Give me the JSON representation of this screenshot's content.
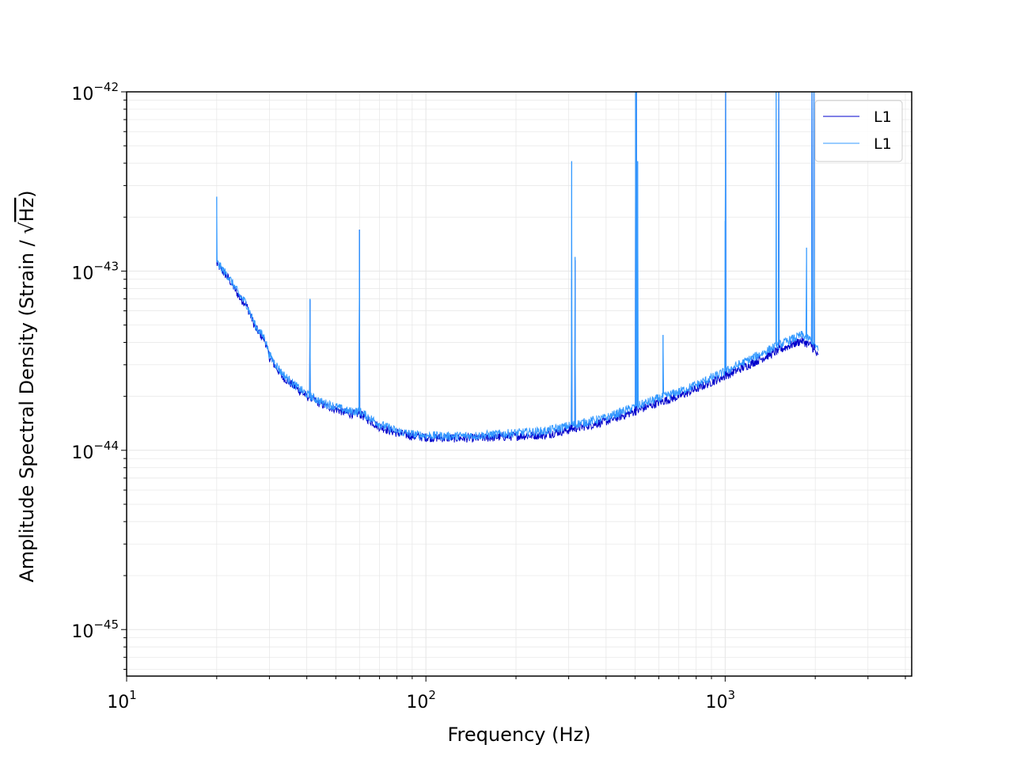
{
  "chart_data": {
    "type": "line",
    "xlabel": "Frequency (Hz)",
    "ylabel_prefix": "Amplitude Spectral Density (Strain / √",
    "ylabel_radicand": "Hz",
    "ylabel_suffix": ")",
    "x_scale": "log",
    "y_scale": "log",
    "xlim": [
      10,
      4200
    ],
    "ylim": [
      5.5e-46,
      1e-42
    ],
    "grid": true,
    "legend_position": "top-right",
    "x_ticks": [
      {
        "value": 10,
        "base": "10",
        "exp": "1"
      },
      {
        "value": 100,
        "base": "10",
        "exp": "2"
      },
      {
        "value": 1000,
        "base": "10",
        "exp": "3"
      }
    ],
    "y_ticks": [
      {
        "value": 1e-45,
        "base": "10",
        "exp": "−45"
      },
      {
        "value": 1e-44,
        "base": "10",
        "exp": "−44"
      },
      {
        "value": 1e-43,
        "base": "10",
        "exp": "−43"
      },
      {
        "value": 1e-42,
        "base": "10",
        "exp": "−42"
      }
    ],
    "series": [
      {
        "name": "L1",
        "color": "#0000cc",
        "baseline": [
          [
            20,
            1.1e-43
          ],
          [
            22,
            9e-44
          ],
          [
            24,
            7e-44
          ],
          [
            25,
            6.6e-44
          ],
          [
            27,
            4.8e-44
          ],
          [
            29,
            4.1e-44
          ],
          [
            30,
            3.3e-44
          ],
          [
            33,
            2.6e-44
          ],
          [
            36,
            2.3e-44
          ],
          [
            40,
            2e-44
          ],
          [
            45,
            1.8e-44
          ],
          [
            50,
            1.7e-44
          ],
          [
            55,
            1.6e-44
          ],
          [
            60,
            1.6e-44
          ],
          [
            70,
            1.35e-44
          ],
          [
            80,
            1.25e-44
          ],
          [
            90,
            1.2e-44
          ],
          [
            100,
            1.18e-44
          ],
          [
            120,
            1.17e-44
          ],
          [
            150,
            1.17e-44
          ],
          [
            200,
            1.2e-44
          ],
          [
            250,
            1.22e-44
          ],
          [
            300,
            1.3e-44
          ],
          [
            400,
            1.45e-44
          ],
          [
            500,
            1.65e-44
          ],
          [
            600,
            1.85e-44
          ],
          [
            700,
            2e-44
          ],
          [
            800,
            2.2e-44
          ],
          [
            1000,
            2.6e-44
          ],
          [
            1200,
            3e-44
          ],
          [
            1500,
            3.6e-44
          ],
          [
            1800,
            4.1e-44
          ],
          [
            1950,
            3.8e-44
          ],
          [
            2048,
            3.3e-44
          ]
        ],
        "lines": [
          [
            41,
            6.9e-44
          ],
          [
            60,
            1.7e-43
          ],
          [
            307,
            9e-44
          ],
          [
            315,
            1.15e-43
          ],
          [
            502,
            1e-42
          ],
          [
            505,
            1e-42
          ],
          [
            1004,
            1e-42
          ],
          [
            1510,
            1e-42
          ],
          [
            1950,
            1e-42
          ],
          [
            1980,
            1e-42
          ]
        ]
      },
      {
        "name": "L1",
        "color": "#3399ff",
        "baseline": [
          [
            20,
            1.12e-43
          ],
          [
            22,
            9.2e-44
          ],
          [
            24,
            7.2e-44
          ],
          [
            25,
            6.7e-44
          ],
          [
            27,
            4.9e-44
          ],
          [
            29,
            4.2e-44
          ],
          [
            30,
            3.4e-44
          ],
          [
            33,
            2.7e-44
          ],
          [
            36,
            2.35e-44
          ],
          [
            40,
            2.05e-44
          ],
          [
            45,
            1.85e-44
          ],
          [
            50,
            1.75e-44
          ],
          [
            55,
            1.65e-44
          ],
          [
            60,
            1.65e-44
          ],
          [
            70,
            1.4e-44
          ],
          [
            80,
            1.28e-44
          ],
          [
            90,
            1.23e-44
          ],
          [
            100,
            1.21e-44
          ],
          [
            120,
            1.2e-44
          ],
          [
            150,
            1.21e-44
          ],
          [
            200,
            1.25e-44
          ],
          [
            250,
            1.28e-44
          ],
          [
            300,
            1.37e-44
          ],
          [
            400,
            1.52e-44
          ],
          [
            500,
            1.75e-44
          ],
          [
            600,
            1.95e-44
          ],
          [
            700,
            2.12e-44
          ],
          [
            800,
            2.32e-44
          ],
          [
            1000,
            2.75e-44
          ],
          [
            1200,
            3.2e-44
          ],
          [
            1500,
            3.85e-44
          ],
          [
            1800,
            4.4e-44
          ],
          [
            1950,
            4.1e-44
          ],
          [
            2048,
            3.6e-44
          ]
        ],
        "lines": [
          [
            20,
            2.6e-43
          ],
          [
            41,
            7e-44
          ],
          [
            60,
            1.7e-43
          ],
          [
            307,
            4.1e-43
          ],
          [
            315,
            1.2e-43
          ],
          [
            502,
            1e-42
          ],
          [
            505,
            1e-42
          ],
          [
            510,
            4.1e-43
          ],
          [
            620,
            4.4e-44
          ],
          [
            1000,
            1.9e-43
          ],
          [
            1004,
            1e-42
          ],
          [
            1480,
            1e-42
          ],
          [
            1510,
            1e-42
          ],
          [
            1870,
            1.35e-43
          ],
          [
            1950,
            1e-42
          ],
          [
            1980,
            1e-42
          ]
        ]
      }
    ]
  }
}
